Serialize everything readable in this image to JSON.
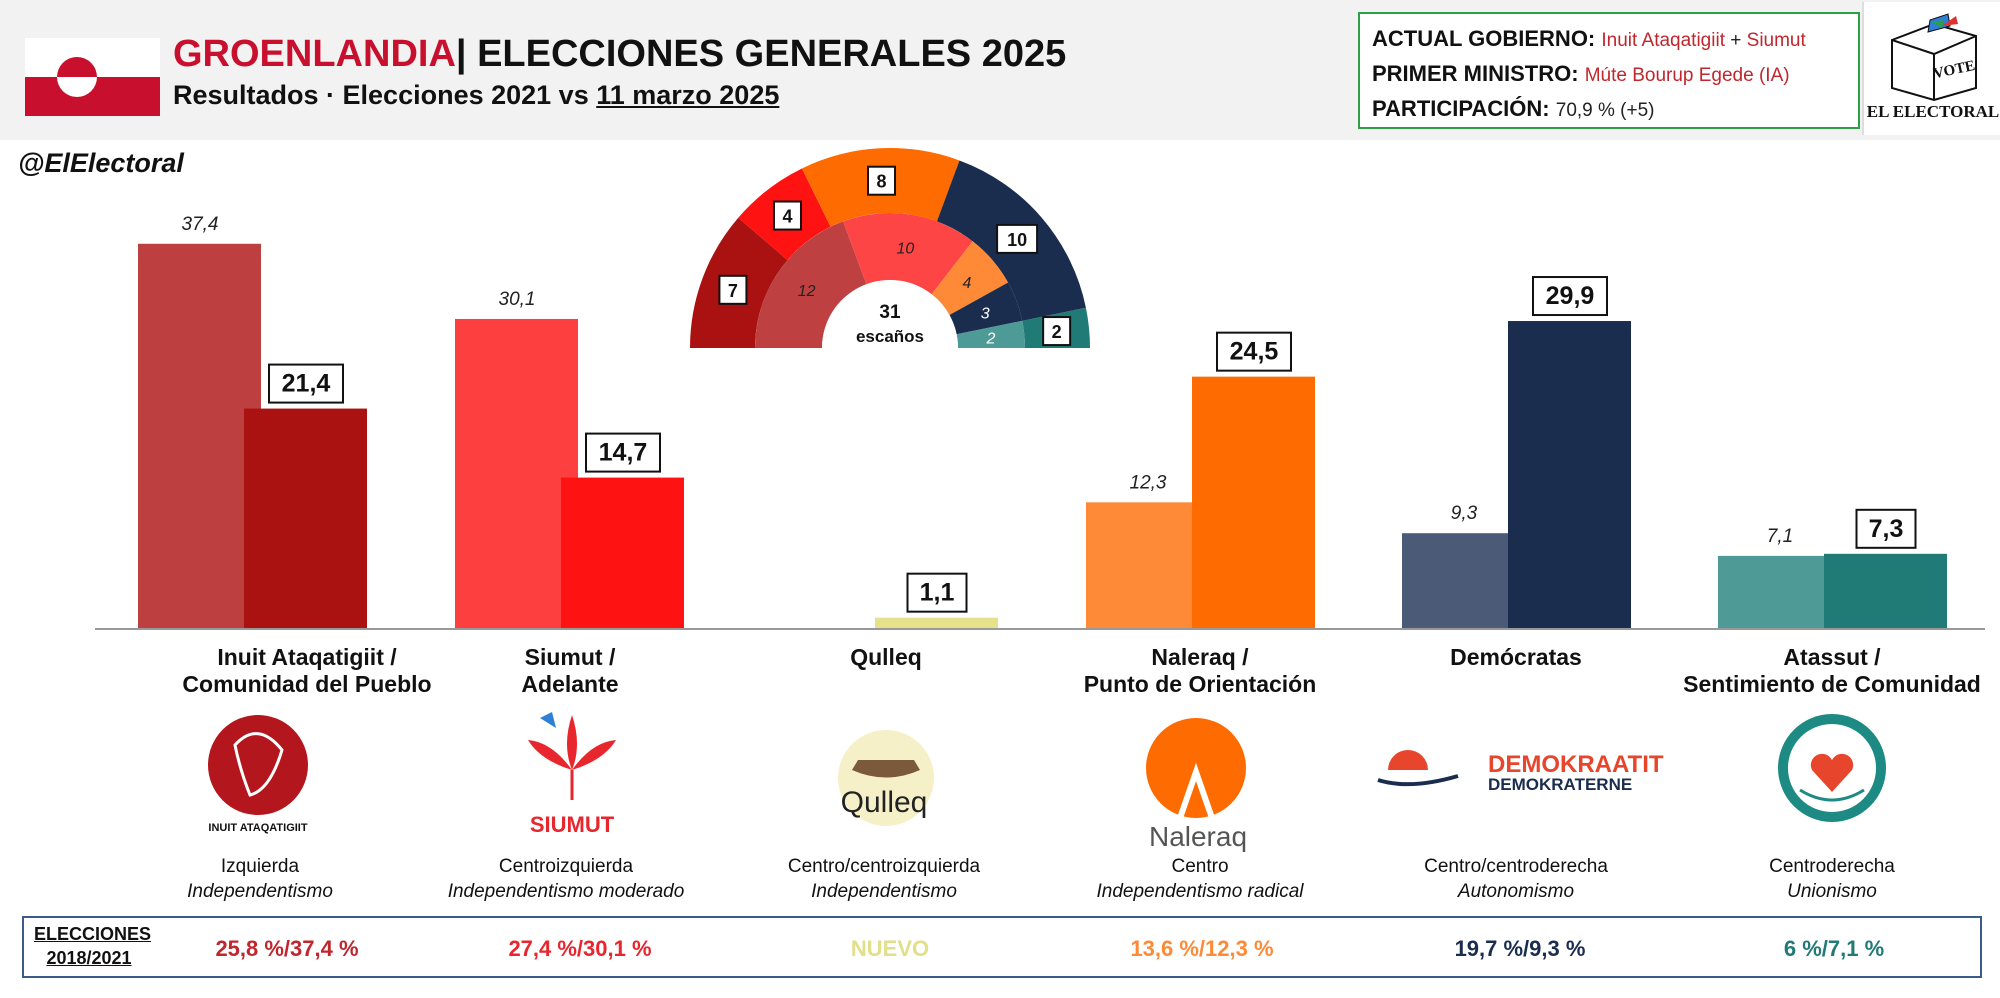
{
  "header": {
    "title_country": "GROENLANDIA",
    "title_rest": "| ELECCIONES GENERALES 2025",
    "subtitle_prefix": "Resultados · Elecciones 2021 vs ",
    "subtitle_date": "11 marzo 2025",
    "flag_colors": {
      "red": "#c8102e",
      "white": "#ffffff"
    }
  },
  "government": {
    "gov_label": "ACTUAL GOBIERNO:",
    "gov_party1": "Inuit Ataqatigiit",
    "gov_plus": " + ",
    "gov_party2": "Siumut",
    "pm_label": "PRIMER MINISTRO:",
    "pm_value": "Múte Bourup Egede (IA)",
    "part_label": "PARTICIPACIÓN:",
    "part_value": "70,9 % (+5)"
  },
  "brand": {
    "logo_text": "EL ELECTORAL",
    "vote_text": "VOTE",
    "handle": "@ElElectoral"
  },
  "chart_data": {
    "type": "bar",
    "categories": [
      "Inuit Ataqatigiit / Comunidad del Pueblo",
      "Siumut / Adelante",
      "Qulleq",
      "Naleraq / Punto de Orientación",
      "Demócratas",
      "Atassut / Sentimiento de Comunidad"
    ],
    "series": [
      {
        "values": [
          37.4,
          30.1,
          null,
          12.3,
          9.3,
          7.1
        ],
        "labels": [
          "37,4",
          "30,1",
          "",
          "12,3",
          "9,3",
          "7,1"
        ]
      },
      {
        "values": [
          21.4,
          14.7,
          1.1,
          24.5,
          29.9,
          7.3
        ],
        "labels": [
          "21,4",
          "14,7",
          "1,1",
          "24,5",
          "29,9",
          "7,3"
        ]
      }
    ],
    "colors_2021": [
      "#be3f3f",
      "#fe3f3f",
      "#e6e28c",
      "#fe8a37",
      "#4a5a77",
      "#4d9a96"
    ],
    "colors_2025": [
      "#aa1111",
      "#fe1212",
      "#e6e28c",
      "#fe6b00",
      "#1b2d4e",
      "#207a75"
    ],
    "ylim": [
      0,
      40
    ]
  },
  "seats": {
    "center_number": "31",
    "center_label": "escaños",
    "inner_2021": [
      {
        "value": 12,
        "label": "12",
        "color": "#be4040"
      },
      {
        "value": 10,
        "label": "10",
        "color": "#fe4545"
      },
      {
        "value": 4,
        "label": "4",
        "color": "#fe8a37"
      },
      {
        "value": 3,
        "label": "3",
        "color": "#1b2d4e"
      },
      {
        "value": 2,
        "label": "2",
        "color": "#4d9a96"
      }
    ],
    "outer_2025": [
      {
        "value": 7,
        "label": "7",
        "color": "#aa1111"
      },
      {
        "value": 4,
        "label": "4",
        "color": "#fe1212"
      },
      {
        "value": 8,
        "label": "8",
        "color": "#fe6b00"
      },
      {
        "value": 10,
        "label": "10",
        "color": "#1b2d4e"
      },
      {
        "value": 2,
        "label": "2",
        "color": "#207a75"
      }
    ]
  },
  "parties": [
    {
      "name_line1": "Inuit Ataqatigiit /",
      "name_line2": "Comunidad del Pueblo",
      "ideology": "Izquierda",
      "stance": "Independentismo",
      "logo_text": "INUIT ATAQATIGIIT",
      "prev": "25,8 %/37,4 %",
      "prev_color": "#c0262d"
    },
    {
      "name_line1": "Siumut /",
      "name_line2": "Adelante",
      "ideology": "Centroizquierda",
      "stance": "Independentismo moderado",
      "logo_text": "SIUMUT",
      "prev": "27,4 %/30,1 %",
      "prev_color": "#e8262d"
    },
    {
      "name_line1": "Qulleq",
      "name_line2": "",
      "ideology": "Centro/centroizquierda",
      "stance": "Independentismo",
      "logo_text": "Qulleq",
      "prev": "NUEVO",
      "prev_color": "#e2df8a"
    },
    {
      "name_line1": "Naleraq /",
      "name_line2": "Punto de Orientación",
      "ideology": "Centro",
      "stance": "Independentismo radical",
      "logo_text": "Naleraq",
      "prev": "13,6 %/12,3 %",
      "prev_color": "#fe8a37"
    },
    {
      "name_line1": "Demócratas",
      "name_line2": "",
      "ideology": "Centro/centroderecha",
      "stance": "Autonomismo",
      "logo_text": "DEMOKRAATIT",
      "logo_text2": "DEMOKRATERNE",
      "prev": "19,7 %/9,3 %",
      "prev_color": "#1b2d4e"
    },
    {
      "name_line1": "Atassut /",
      "name_line2": "Sentimiento de Comunidad",
      "ideology": "Centroderecha",
      "stance": "Unionismo",
      "logo_text": "",
      "prev": "6 %/7,1 %",
      "prev_color": "#207a75"
    }
  ],
  "previous": {
    "label_line1": "ELECCIONES",
    "label_line2": "2018/2021"
  }
}
